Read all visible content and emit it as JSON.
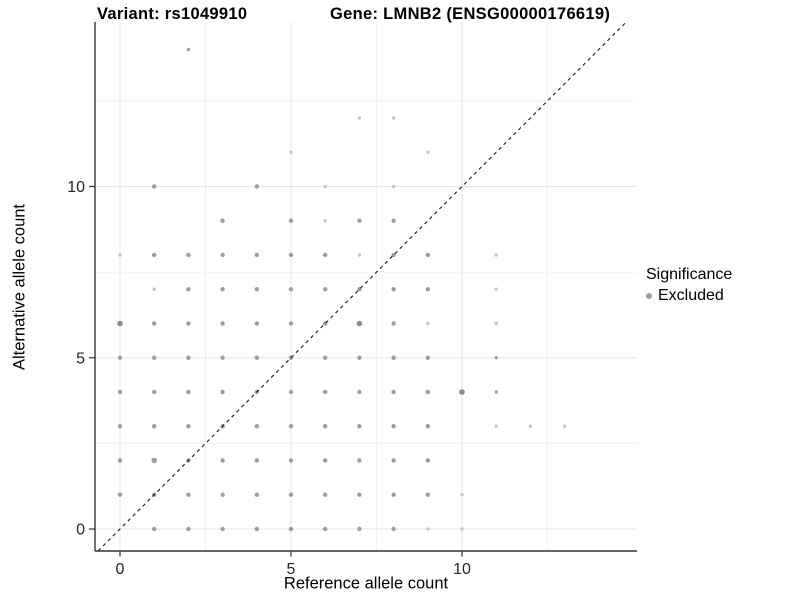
{
  "chart_data": {
    "type": "scatter",
    "title_left": "Variant: rs1049910",
    "title_right": "Gene: LMNB2 (ENSG00000176619)",
    "xlabel": "Reference allele count",
    "ylabel": "Alternative allele count",
    "x_ticks": [
      0,
      5,
      10
    ],
    "y_ticks": [
      0,
      5,
      10
    ],
    "x_minor": [
      2.5,
      7.5,
      12.5
    ],
    "y_minor": [
      2.5,
      7.5,
      12.5
    ],
    "xlim": [
      -0.73,
      15.06
    ],
    "ylim": [
      -0.65,
      14.82
    ],
    "grid": true,
    "identity_line": {
      "equation": "y = x",
      "style": "dashed",
      "color": "#1a1a1a"
    },
    "legend": {
      "title": "Significance",
      "position": "right",
      "items": [
        {
          "label": "Excluded",
          "color": "#9d9d9d"
        }
      ]
    },
    "point_color_levels": {
      "l": "#c5c5c5",
      "m": "#9d9d9d",
      "d": "#8b8b8b"
    },
    "point_size_levels": {
      "1": 1.7,
      "2": 2.2,
      "3": 2.8
    },
    "points": [
      [
        1,
        0,
        2,
        "m"
      ],
      [
        2,
        0,
        2,
        "m"
      ],
      [
        3,
        0,
        2,
        "m"
      ],
      [
        4,
        0,
        2,
        "m"
      ],
      [
        5,
        0,
        2,
        "m"
      ],
      [
        6,
        0,
        2,
        "m"
      ],
      [
        7,
        0,
        2,
        "m"
      ],
      [
        8,
        0,
        2,
        "m"
      ],
      [
        9,
        0,
        1,
        "l"
      ],
      [
        10,
        0,
        1,
        "l"
      ],
      [
        0,
        1,
        2,
        "m"
      ],
      [
        1,
        1,
        2,
        "m"
      ],
      [
        2,
        1,
        2,
        "m"
      ],
      [
        3,
        1,
        2,
        "m"
      ],
      [
        4,
        1,
        2,
        "m"
      ],
      [
        5,
        1,
        2,
        "m"
      ],
      [
        6,
        1,
        2,
        "m"
      ],
      [
        7,
        1,
        2,
        "m"
      ],
      [
        8,
        1,
        2,
        "m"
      ],
      [
        9,
        1,
        2,
        "m"
      ],
      [
        10,
        1,
        1,
        "l"
      ],
      [
        0,
        2,
        2,
        "m"
      ],
      [
        1,
        2,
        3,
        "m"
      ],
      [
        2,
        2,
        2,
        "m"
      ],
      [
        3,
        2,
        2,
        "m"
      ],
      [
        4,
        2,
        2,
        "m"
      ],
      [
        5,
        2,
        2,
        "m"
      ],
      [
        6,
        2,
        2,
        "m"
      ],
      [
        7,
        2,
        2,
        "m"
      ],
      [
        8,
        2,
        2,
        "m"
      ],
      [
        9,
        2,
        2,
        "m"
      ],
      [
        0,
        3,
        2,
        "m"
      ],
      [
        1,
        3,
        2,
        "m"
      ],
      [
        2,
        3,
        2,
        "m"
      ],
      [
        3,
        3,
        2,
        "m"
      ],
      [
        4,
        3,
        2,
        "m"
      ],
      [
        5,
        3,
        2,
        "m"
      ],
      [
        6,
        3,
        2,
        "m"
      ],
      [
        7,
        3,
        2,
        "m"
      ],
      [
        8,
        3,
        2,
        "m"
      ],
      [
        9,
        3,
        2,
        "m"
      ],
      [
        11,
        3,
        1,
        "l"
      ],
      [
        12,
        3,
        1,
        "l"
      ],
      [
        13,
        3,
        1,
        "l"
      ],
      [
        0,
        4,
        2,
        "m"
      ],
      [
        1,
        4,
        2,
        "m"
      ],
      [
        2,
        4,
        2,
        "m"
      ],
      [
        3,
        4,
        2,
        "m"
      ],
      [
        4,
        4,
        2,
        "m"
      ],
      [
        5,
        4,
        2,
        "m"
      ],
      [
        6,
        4,
        2,
        "m"
      ],
      [
        7,
        4,
        2,
        "m"
      ],
      [
        8,
        4,
        2,
        "m"
      ],
      [
        9,
        4,
        2,
        "m"
      ],
      [
        10,
        4,
        3,
        "d"
      ],
      [
        11,
        4,
        1,
        "m"
      ],
      [
        0,
        5,
        2,
        "m"
      ],
      [
        1,
        5,
        2,
        "m"
      ],
      [
        2,
        5,
        2,
        "m"
      ],
      [
        3,
        5,
        2,
        "m"
      ],
      [
        4,
        5,
        2,
        "m"
      ],
      [
        5,
        5,
        2,
        "m"
      ],
      [
        6,
        5,
        2,
        "m"
      ],
      [
        7,
        5,
        2,
        "m"
      ],
      [
        8,
        5,
        2,
        "m"
      ],
      [
        9,
        5,
        2,
        "m"
      ],
      [
        11,
        5,
        1,
        "m"
      ],
      [
        0,
        6,
        3,
        "d"
      ],
      [
        1,
        6,
        2,
        "m"
      ],
      [
        2,
        6,
        2,
        "m"
      ],
      [
        3,
        6,
        2,
        "m"
      ],
      [
        4,
        6,
        2,
        "m"
      ],
      [
        5,
        6,
        2,
        "m"
      ],
      [
        6,
        6,
        2,
        "m"
      ],
      [
        7,
        6,
        3,
        "d"
      ],
      [
        8,
        6,
        2,
        "m"
      ],
      [
        9,
        6,
        1,
        "l"
      ],
      [
        11,
        6,
        1,
        "l"
      ],
      [
        1,
        7,
        1,
        "l"
      ],
      [
        2,
        7,
        2,
        "m"
      ],
      [
        3,
        7,
        2,
        "m"
      ],
      [
        4,
        7,
        2,
        "m"
      ],
      [
        5,
        7,
        2,
        "m"
      ],
      [
        6,
        7,
        2,
        "m"
      ],
      [
        7,
        7,
        2,
        "m"
      ],
      [
        8,
        7,
        2,
        "m"
      ],
      [
        9,
        7,
        2,
        "m"
      ],
      [
        11,
        7,
        1,
        "l"
      ],
      [
        0,
        8,
        1,
        "l"
      ],
      [
        1,
        8,
        2,
        "m"
      ],
      [
        2,
        8,
        2,
        "m"
      ],
      [
        3,
        8,
        2,
        "m"
      ],
      [
        4,
        8,
        2,
        "m"
      ],
      [
        5,
        8,
        2,
        "m"
      ],
      [
        6,
        8,
        2,
        "m"
      ],
      [
        7,
        8,
        1,
        "l"
      ],
      [
        8,
        8,
        2,
        "m"
      ],
      [
        9,
        8,
        2,
        "m"
      ],
      [
        11,
        8,
        1,
        "l"
      ],
      [
        3,
        9,
        2,
        "m"
      ],
      [
        5,
        9,
        2,
        "m"
      ],
      [
        6,
        9,
        1,
        "l"
      ],
      [
        7,
        9,
        2,
        "m"
      ],
      [
        8,
        9,
        2,
        "m"
      ],
      [
        1,
        10,
        2,
        "m"
      ],
      [
        4,
        10,
        2,
        "m"
      ],
      [
        6,
        10,
        1,
        "l"
      ],
      [
        8,
        10,
        1,
        "l"
      ],
      [
        5,
        11,
        1,
        "l"
      ],
      [
        9,
        11,
        1,
        "l"
      ],
      [
        7,
        12,
        1,
        "l"
      ],
      [
        8,
        12,
        1,
        "l"
      ],
      [
        2,
        14,
        1,
        "m"
      ]
    ]
  }
}
